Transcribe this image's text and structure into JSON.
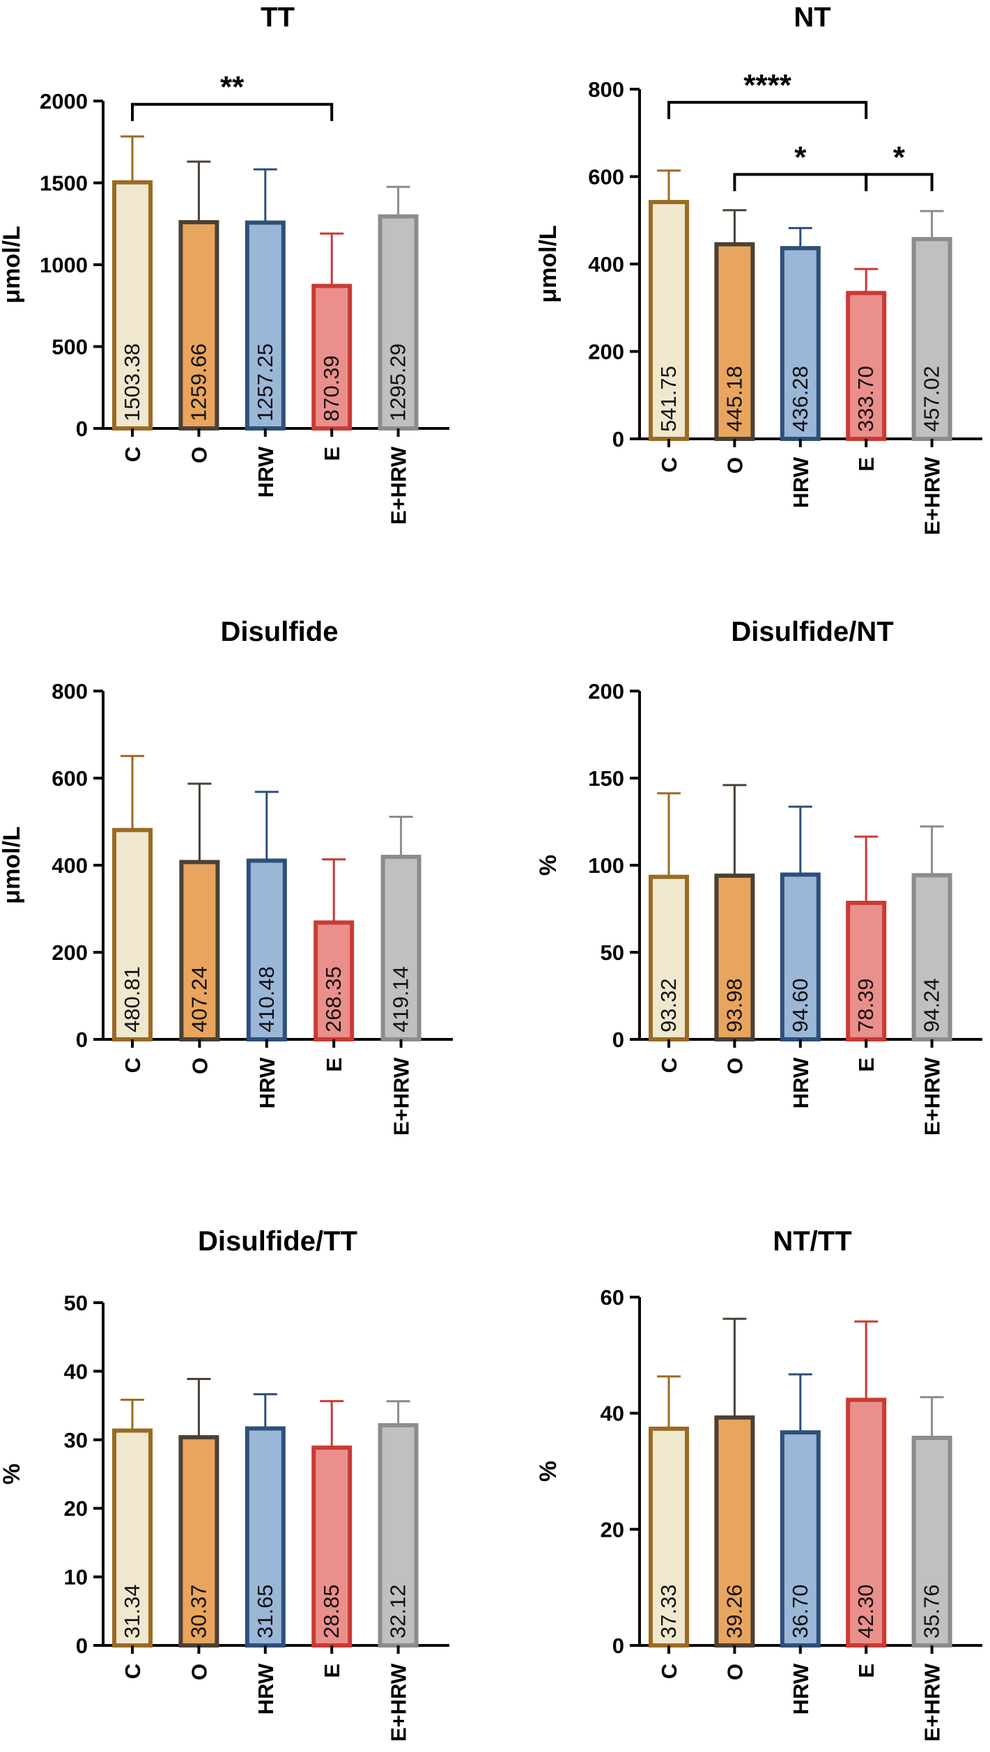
{
  "groups": [
    "C",
    "O",
    "HRW",
    "E",
    "E+HRW"
  ],
  "group_colors": {
    "fill": [
      "#efe8cf",
      "#e9a55d",
      "#9bb7d8",
      "#ea8f8b",
      "#bfc0c2"
    ],
    "stroke": [
      "#9a6b22",
      "#4a4036",
      "#2d4f7a",
      "#c93a36",
      "#8c8c8a"
    ]
  },
  "chart_data": [
    {
      "type": "bar",
      "title": "TT",
      "ylabel": "μmol/L",
      "categories": [
        "C",
        "O",
        "HRW",
        "E",
        "E+HRW"
      ],
      "values": [
        1503.38,
        1259.66,
        1257.25,
        870.39,
        1295.29
      ],
      "value_labels": [
        "1503.38",
        "1259.66",
        "1257.25",
        "870.39",
        "1295.29"
      ],
      "errors": [
        280,
        370,
        325,
        320,
        180
      ],
      "ylim": [
        0,
        2000
      ],
      "yticks": [
        0,
        500,
        1000,
        1500,
        2000
      ],
      "significance": [
        {
          "from": 0,
          "to": 3,
          "label": "**",
          "level": 1980
        }
      ]
    },
    {
      "type": "bar",
      "title": "NT",
      "ylabel": "μmol/L",
      "categories": [
        "C",
        "O",
        "HRW",
        "E",
        "E+HRW"
      ],
      "values": [
        541.75,
        445.18,
        436.28,
        333.7,
        457.02
      ],
      "value_labels": [
        "541.75",
        "445.18",
        "436.28",
        "333.70",
        "457.02"
      ],
      "errors": [
        72,
        78,
        46,
        55,
        64
      ],
      "ylim": [
        0,
        800
      ],
      "yticks": [
        0,
        200,
        400,
        600,
        800
      ],
      "significance": [
        {
          "from": 0,
          "to": 3,
          "label": "****",
          "level": 770
        },
        {
          "from": 1,
          "to": 3,
          "label": "*",
          "level": 605
        },
        {
          "from": 3,
          "to": 4,
          "label": "*",
          "level": 605
        }
      ]
    },
    {
      "type": "bar",
      "title": "Disulfide",
      "ylabel": "μmol/L",
      "categories": [
        "C",
        "O",
        "HRW",
        "E",
        "E+HRW"
      ],
      "values": [
        480.81,
        407.24,
        410.48,
        268.35,
        419.14
      ],
      "value_labels": [
        "480.81",
        "407.24",
        "410.48",
        "268.35",
        "419.14"
      ],
      "errors": [
        170,
        180,
        158,
        145,
        92
      ],
      "ylim": [
        0,
        800
      ],
      "yticks": [
        0,
        200,
        400,
        600,
        800
      ],
      "significance": []
    },
    {
      "type": "bar",
      "title": "Disulfide/NT",
      "ylabel": "%",
      "categories": [
        "C",
        "O",
        "HRW",
        "E",
        "E+HRW"
      ],
      "values": [
        93.32,
        93.98,
        94.6,
        78.39,
        94.24
      ],
      "value_labels": [
        "93.32",
        "93.98",
        "94.60",
        "78.39",
        "94.24"
      ],
      "errors": [
        48,
        52,
        39,
        38,
        28
      ],
      "ylim": [
        0,
        200
      ],
      "yticks": [
        0,
        50,
        100,
        150,
        200
      ],
      "significance": []
    },
    {
      "type": "bar",
      "title": "Disulfide/TT",
      "ylabel": "%",
      "categories": [
        "C",
        "O",
        "HRW",
        "E",
        "E+HRW"
      ],
      "values": [
        31.34,
        30.37,
        31.65,
        28.85,
        32.12
      ],
      "value_labels": [
        "31.34",
        "30.37",
        "31.65",
        "28.85",
        "32.12"
      ],
      "errors": [
        4.5,
        8.5,
        5,
        6.8,
        3.5
      ],
      "ylim": [
        0,
        50
      ],
      "yticks": [
        0,
        10,
        20,
        30,
        40,
        50
      ],
      "significance": []
    },
    {
      "type": "bar",
      "title": "NT/TT",
      "ylabel": "%",
      "categories": [
        "C",
        "O",
        "HRW",
        "E",
        "E+HRW"
      ],
      "values": [
        37.33,
        39.26,
        36.7,
        42.3,
        35.76
      ],
      "value_labels": [
        "37.33",
        "39.26",
        "36.70",
        "42.30",
        "35.76"
      ],
      "errors": [
        9,
        17,
        10,
        13.5,
        7
      ],
      "ylim": [
        0,
        60
      ],
      "yticks": [
        0,
        20,
        40,
        60
      ],
      "significance": []
    }
  ]
}
